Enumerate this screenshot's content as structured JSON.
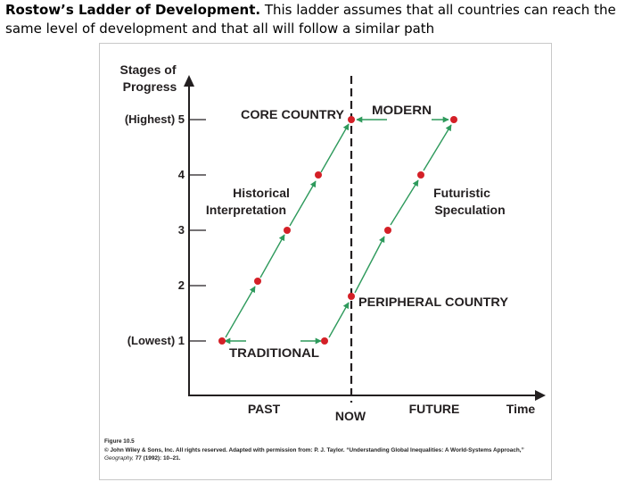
{
  "title": {
    "lead": "Rostow’s Ladder of Development.",
    "rest": " This ladder assumes that all countries can reach the same level of development and that all will follow a similar path"
  },
  "figure": {
    "y_axis_title_line1": "Stages of",
    "y_axis_title_line2": "Progress",
    "x_axis_title": "Time",
    "y_ticks": [
      "(Lowest) 1",
      "2",
      "3",
      "4",
      "(Highest) 5"
    ],
    "x_labels": {
      "past": "PAST",
      "now": "NOW",
      "future": "FUTURE"
    },
    "labels": {
      "core_country": "CORE COUNTRY",
      "modern": "MODERN",
      "historical_line1": "Historical",
      "historical_line2": "Interpretation",
      "futuristic_line1": "Futuristic",
      "futuristic_line2": "Speculation",
      "peripheral_country": "PERIPHERAL COUNTRY",
      "traditional": "TRADITIONAL"
    },
    "colors": {
      "point": "#d42027",
      "arrow": "#2e9a5c",
      "axis": "#231f20"
    }
  },
  "caption": {
    "figure_number": "Figure 10.5",
    "credit": "© John Wiley & Sons, Inc. All rights reserved. Adapted with permission from: P. J. Taylor. “Understanding Global Inequalities: A World-Systems Approach,” ",
    "journal": "Geography,",
    "citation": " 77 (1992): 10–21."
  }
}
